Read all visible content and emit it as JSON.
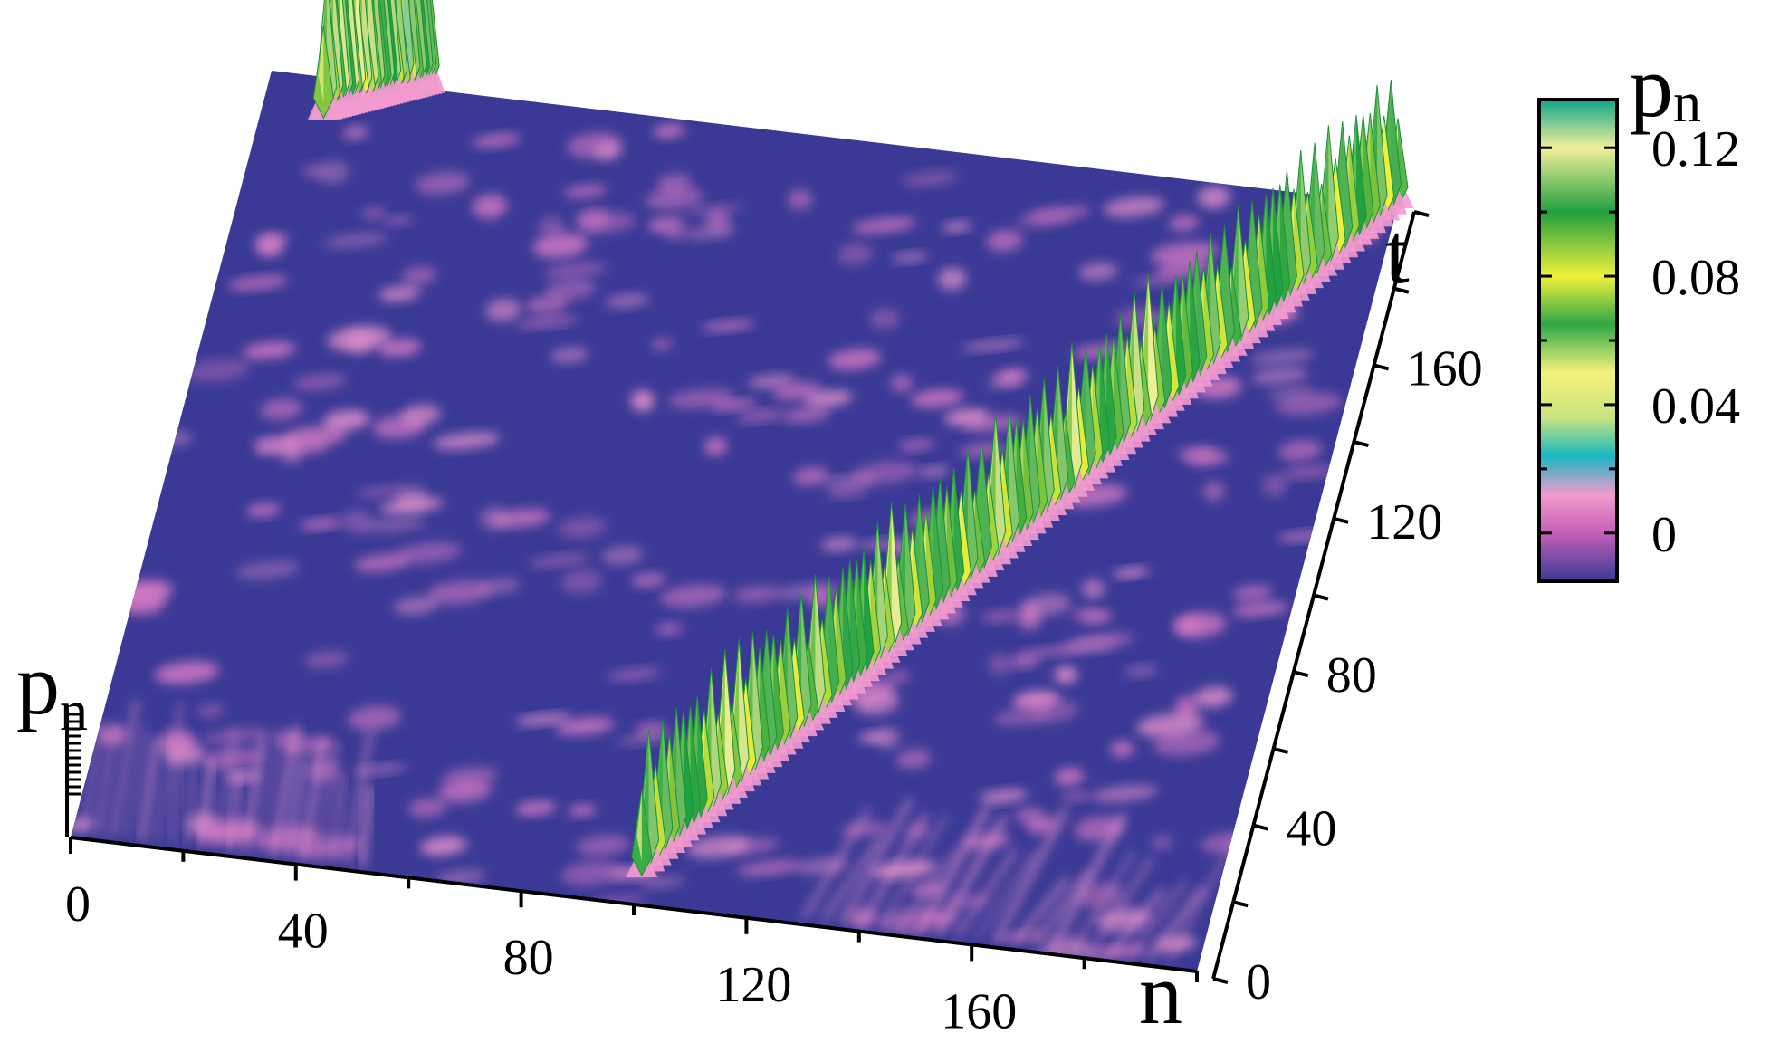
{
  "chart_data": {
    "type": "surface",
    "x": {
      "label": "n",
      "ticks": [
        0,
        40,
        80,
        120,
        160
      ],
      "range": [
        0,
        200
      ]
    },
    "y": {
      "label": "t",
      "ticks": [
        0,
        40,
        80,
        120,
        160
      ],
      "range": [
        0,
        200
      ]
    },
    "z": {
      "label": "p",
      "label_subscript": "n"
    },
    "colorbar": {
      "label": "p",
      "label_subscript": "n",
      "ticks": [
        {
          "value": 0,
          "text": "0"
        },
        {
          "value": 0.04,
          "text": "0.04"
        },
        {
          "value": 0.08,
          "text": "0.08"
        },
        {
          "value": 0.12,
          "text": "0.12"
        }
      ],
      "range": [
        -0.015,
        0.135
      ],
      "colorscale": [
        {
          "value": -0.015,
          "color": "#3a3a96"
        },
        {
          "value": 0.0,
          "color": "#c45fb8"
        },
        {
          "value": 0.012,
          "color": "#f39ad0"
        },
        {
          "value": 0.024,
          "color": "#19b7c2"
        },
        {
          "value": 0.036,
          "color": "#c9e47e"
        },
        {
          "value": 0.05,
          "color": "#f3f27c"
        },
        {
          "value": 0.065,
          "color": "#2ea845"
        },
        {
          "value": 0.08,
          "color": "#f1f03a"
        },
        {
          "value": 0.1,
          "color": "#20a040"
        },
        {
          "value": 0.12,
          "color": "#f2f09a"
        },
        {
          "value": 0.135,
          "color": "#0fa58a"
        }
      ]
    },
    "features": [
      {
        "name": "moving peak",
        "n_start": 100,
        "t_start": 0,
        "n_end": 200,
        "t_end": 200,
        "peak_p": 0.12
      },
      {
        "name": "peak at far corner",
        "n": 20,
        "t": 200,
        "peak_p": 0.13
      }
    ],
    "base_color": "#3a3a96"
  }
}
